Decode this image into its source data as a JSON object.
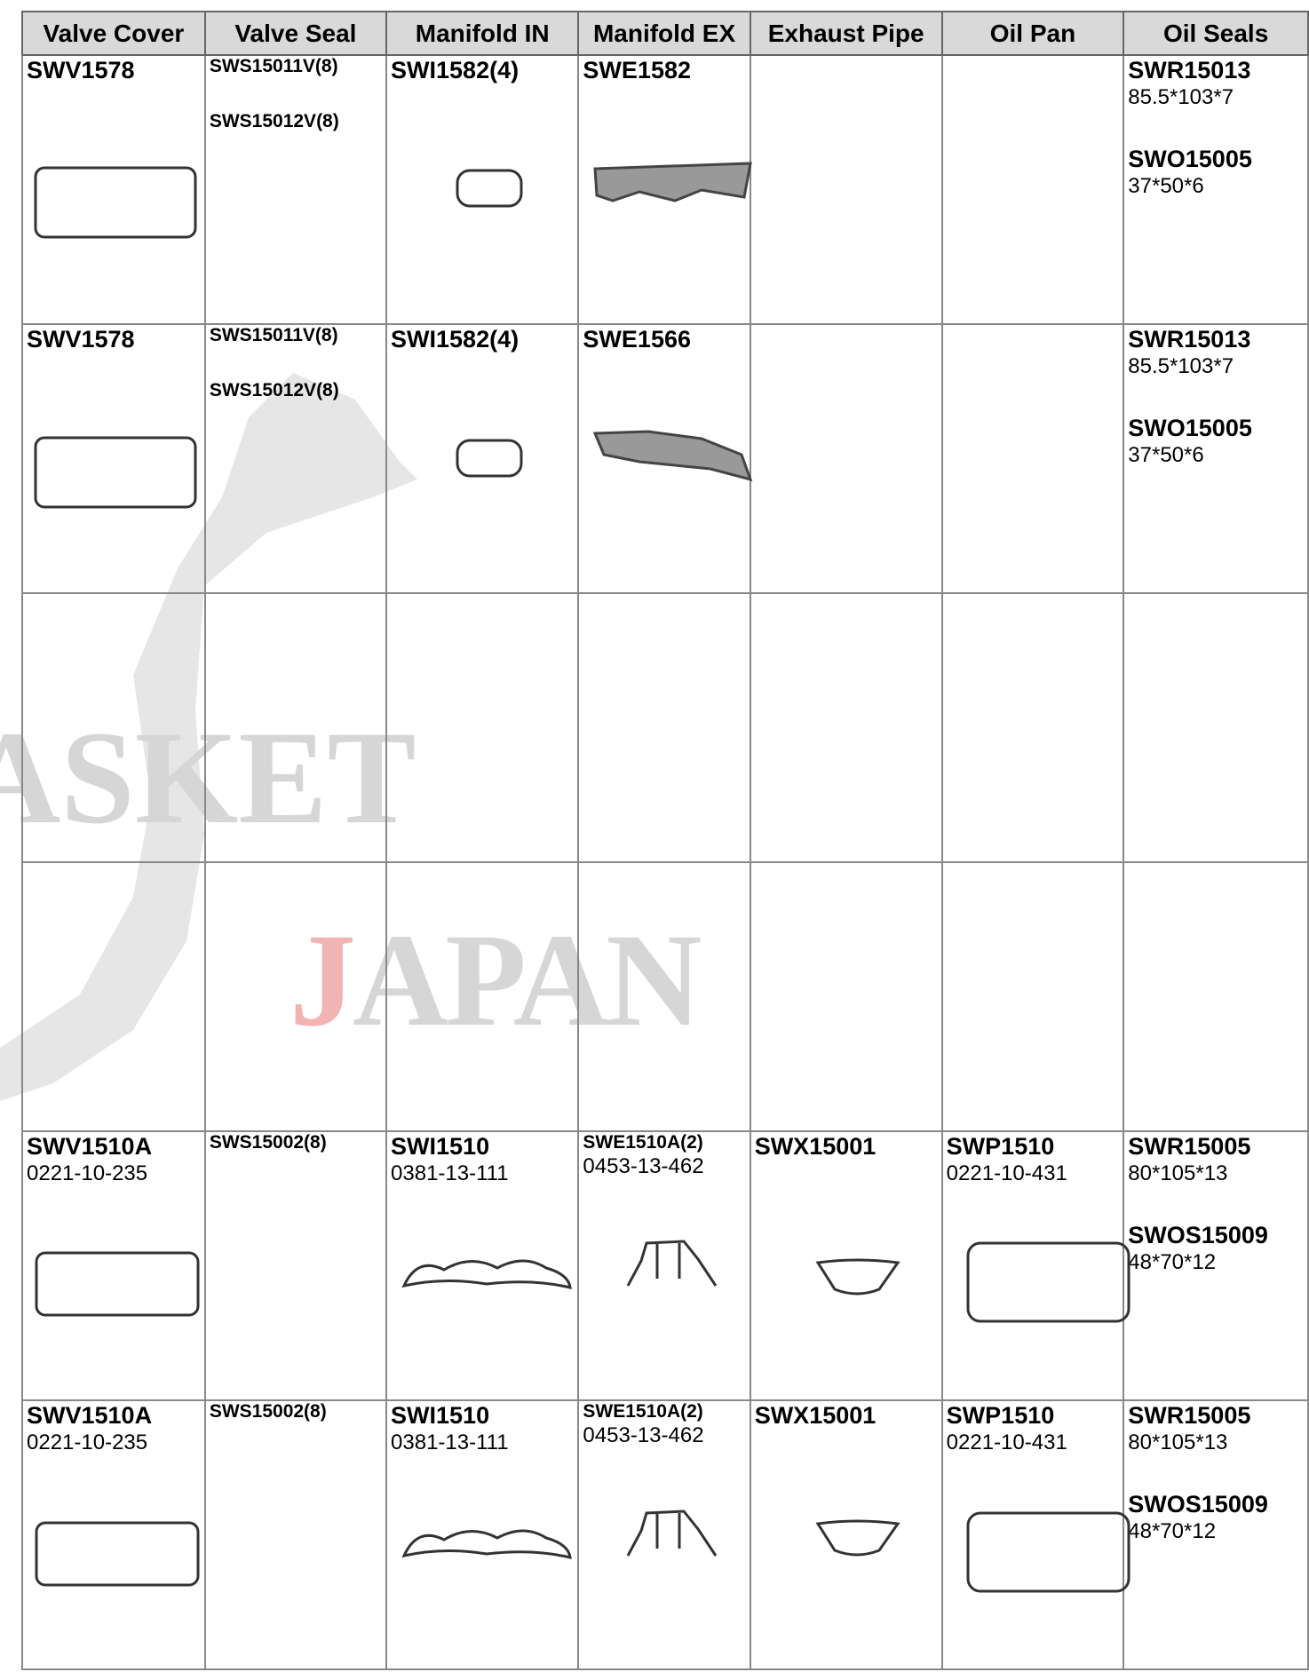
{
  "watermark": {
    "left": "ASKET",
    "center": "JAPAN"
  },
  "header": {
    "columns": [
      "Valve Cover",
      "Valve Seal",
      "Manifold IN",
      "Manifold EX",
      "Exhaust Pipe",
      "Oil Pan",
      "Oil Seals"
    ]
  },
  "table": {
    "rows": [
      [
        [
          {
            "text": "SWV1578",
            "bold": true
          }
        ],
        [
          {
            "text": "SWS15011V(8)",
            "bold": true,
            "small": true
          },
          {
            "text": "SWS15012V(8)",
            "bold": true,
            "small": true
          }
        ],
        [
          {
            "text": "SWI1582(4)",
            "bold": true
          }
        ],
        [
          {
            "text": "SWE1582",
            "bold": true
          }
        ],
        [],
        [],
        [
          {
            "text": "SWR15013",
            "bold": true
          },
          {
            "text": "85.5*103*7",
            "bold": false
          },
          {
            "text": "SWO15005",
            "bold": true
          },
          {
            "text": "37*50*6",
            "bold": false
          }
        ]
      ],
      [
        [
          {
            "text": "SWV1578",
            "bold": true
          }
        ],
        [
          {
            "text": "SWS15011V(8)",
            "bold": true,
            "small": true
          },
          {
            "text": "SWS15012V(8)",
            "bold": true,
            "small": true
          }
        ],
        [
          {
            "text": "SWI1582(4)",
            "bold": true
          }
        ],
        [
          {
            "text": "SWE1566",
            "bold": true
          }
        ],
        [],
        [],
        [
          {
            "text": "SWR15013",
            "bold": true
          },
          {
            "text": "85.5*103*7",
            "bold": false
          },
          {
            "text": "SWO15005",
            "bold": true
          },
          {
            "text": "37*50*6",
            "bold": false
          }
        ]
      ],
      [
        [],
        [],
        [],
        [],
        [],
        [],
        []
      ],
      [
        [],
        [],
        [],
        [],
        [],
        [],
        []
      ],
      [
        [
          {
            "text": "SWV1510A",
            "bold": true
          },
          {
            "text": "0221-10-235",
            "bold": false
          }
        ],
        [
          {
            "text": "SWS15002(8)",
            "bold": true,
            "small": true
          }
        ],
        [
          {
            "text": "SWI1510",
            "bold": true
          },
          {
            "text": "0381-13-111",
            "bold": false
          }
        ],
        [
          {
            "text": "SWE1510A(2)",
            "bold": true,
            "small": true
          },
          {
            "text": "0453-13-462",
            "bold": false
          }
        ],
        [
          {
            "text": "SWX15001",
            "bold": true
          }
        ],
        [
          {
            "text": "SWP1510",
            "bold": true
          },
          {
            "text": "0221-10-431",
            "bold": false
          }
        ],
        [
          {
            "text": "SWR15005",
            "bold": true
          },
          {
            "text": "80*105*13",
            "bold": false
          },
          {
            "text": "SWOS15009",
            "bold": true
          },
          {
            "text": "48*70*12",
            "bold": false
          }
        ]
      ],
      [
        [
          {
            "text": "SWV1510A",
            "bold": true
          },
          {
            "text": "0221-10-235",
            "bold": false
          }
        ],
        [
          {
            "text": "SWS15002(8)",
            "bold": true,
            "small": true
          }
        ],
        [
          {
            "text": "SWI1510",
            "bold": true
          },
          {
            "text": "0381-13-111",
            "bold": false
          }
        ],
        [
          {
            "text": "SWE1510A(2)",
            "bold": true,
            "small": true
          },
          {
            "text": "0453-13-462",
            "bold": false
          }
        ],
        [
          {
            "text": "SWX15001",
            "bold": true
          }
        ],
        [
          {
            "text": "SWP1510",
            "bold": true
          },
          {
            "text": "0221-10-431",
            "bold": false
          }
        ],
        [
          {
            "text": "SWR15005",
            "bold": true
          },
          {
            "text": "80*105*13",
            "bold": false
          },
          {
            "text": "SWOS15009",
            "bold": true
          },
          {
            "text": "48*70*12",
            "bold": false
          }
        ]
      ]
    ]
  }
}
